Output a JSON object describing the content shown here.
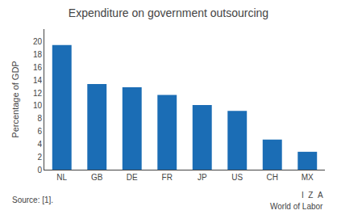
{
  "chart_data": {
    "type": "bar",
    "title": "Expenditure on government outsourcing",
    "categories": [
      "NL",
      "GB",
      "DE",
      "FR",
      "JP",
      "US",
      "CH",
      "MX"
    ],
    "values": [
      19.5,
      13.4,
      12.9,
      11.7,
      10.1,
      9.2,
      4.7,
      2.8
    ],
    "color": "#1b6db5",
    "ylabel": "Percentage of GDP",
    "ylim": [
      0,
      22
    ],
    "yticks": [
      0,
      2,
      4,
      6,
      8,
      10,
      12,
      14,
      16,
      18,
      20
    ],
    "grid": false,
    "annotations": [
      "Source: [1].",
      "I  Z  A",
      "World of Labor"
    ]
  }
}
